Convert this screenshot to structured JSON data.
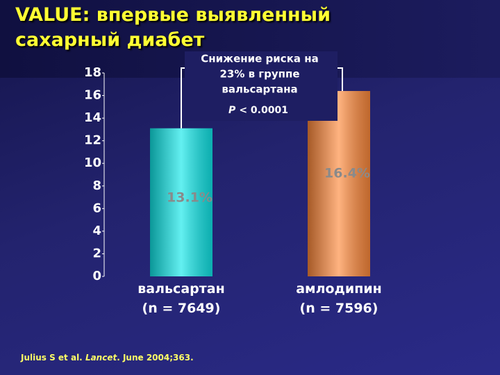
{
  "chart_data": {
    "type": "bar",
    "title": "VALUE: впервые выявленный сахарный диабет",
    "categories": [
      [
        "вальсартан",
        "(n = 7649)"
      ],
      [
        "амлодипин",
        "(n = 7596)"
      ]
    ],
    "values": [
      13.1,
      16.4
    ],
    "value_labels": [
      "13.1%",
      "16.4%"
    ],
    "colors": [
      "#10e8ea",
      "#ff8a3c"
    ],
    "ylim": [
      0,
      18
    ],
    "yticks": [
      0,
      2,
      4,
      6,
      8,
      10,
      12,
      14,
      16,
      18
    ],
    "annotation": {
      "lines": [
        "Снижение риска на",
        "23% в группе",
        "вальсартана"
      ],
      "p_symbol": "P",
      "p_text": "< 0.0001"
    },
    "source": {
      "authors": "Julius S et al.",
      "journal": "Lancet",
      "details": ". June 2004;363."
    }
  }
}
